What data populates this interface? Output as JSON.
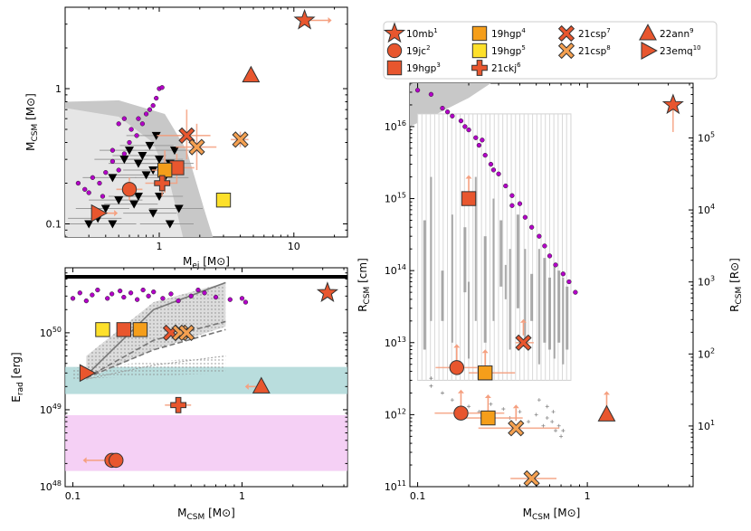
{
  "chart_data": [
    {
      "type": "scatter",
      "panel": "top-left",
      "xlabel": "M_ej [M_⊙]",
      "ylabel": "M_CSM [M_⊙]",
      "xscale": "log",
      "yscale": "log",
      "xlim": [
        0.2,
        25
      ],
      "ylim": [
        0.08,
        4.0
      ],
      "xticks": [
        {
          "v": 1,
          "label": "1"
        },
        {
          "v": 10,
          "label": "10"
        }
      ],
      "yticks": [
        {
          "v": 0.1,
          "label": "0.1"
        },
        {
          "v": 1,
          "label": "1"
        }
      ],
      "objects": [
        {
          "name": "10mb",
          "marker": "star",
          "x": 12,
          "y": 3.2
        },
        {
          "name": "19jc",
          "marker": "circle",
          "x": 0.6,
          "y": 0.18
        },
        {
          "name": "19hgp_a",
          "marker": "square",
          "x": 1.35,
          "y": 0.26
        },
        {
          "name": "19hgp_b",
          "marker": "square",
          "x": 1.1,
          "y": 0.25
        },
        {
          "name": "19hgp_c",
          "marker": "square",
          "x": 3.0,
          "y": 0.15
        },
        {
          "name": "21csp_a",
          "marker": "x",
          "x": 1.6,
          "y": 0.45
        },
        {
          "name": "21csp_b",
          "marker": "x",
          "x": 1.9,
          "y": 0.37
        },
        {
          "name": "21csp_c",
          "marker": "x",
          "x": 4.0,
          "y": 0.42
        },
        {
          "name": "22ann",
          "marker": "triangle",
          "x": 4.8,
          "y": 1.25
        },
        {
          "name": "23emq",
          "marker": "triangle-right",
          "x": 0.35,
          "y": 0.12
        },
        {
          "name": "21ckj",
          "marker": "plus",
          "x": 1.05,
          "y": 0.2
        }
      ],
      "upper_limits": [
        [
          0.45,
          0.22
        ],
        [
          0.55,
          0.3
        ],
        [
          0.6,
          0.35
        ],
        [
          0.7,
          0.28
        ],
        [
          0.75,
          0.32
        ],
        [
          0.8,
          0.23
        ],
        [
          0.85,
          0.38
        ],
        [
          0.9,
          0.25
        ],
        [
          0.95,
          0.45
        ],
        [
          1.0,
          0.3
        ],
        [
          1.1,
          0.22
        ],
        [
          1.2,
          0.28
        ],
        [
          1.3,
          0.35
        ],
        [
          0.5,
          0.15
        ],
        [
          0.65,
          0.14
        ],
        [
          0.4,
          0.13
        ],
        [
          0.35,
          0.11
        ],
        [
          0.9,
          0.12
        ],
        [
          1.2,
          0.1
        ],
        [
          1.4,
          0.13
        ],
        [
          0.3,
          0.1
        ],
        [
          0.45,
          0.1
        ],
        [
          0.7,
          0.16
        ],
        [
          1.0,
          0.16
        ]
      ],
      "dots": [
        [
          0.25,
          0.2
        ],
        [
          0.3,
          0.17
        ],
        [
          0.32,
          0.22
        ],
        [
          0.36,
          0.2
        ],
        [
          0.4,
          0.24
        ],
        [
          0.45,
          0.29
        ],
        [
          0.5,
          0.25
        ],
        [
          0.55,
          0.33
        ],
        [
          0.6,
          0.4
        ],
        [
          0.62,
          0.5
        ],
        [
          0.68,
          0.45
        ],
        [
          0.75,
          0.55
        ],
        [
          0.8,
          0.65
        ],
        [
          0.85,
          0.7
        ],
        [
          0.9,
          0.75
        ],
        [
          0.95,
          0.85
        ],
        [
          1.0,
          1.0
        ],
        [
          1.05,
          1.02
        ],
        [
          0.7,
          0.6
        ],
        [
          0.55,
          0.6
        ],
        [
          0.28,
          0.18
        ],
        [
          0.38,
          0.16
        ],
        [
          0.45,
          0.35
        ],
        [
          0.5,
          0.55
        ]
      ]
    },
    {
      "type": "scatter",
      "panel": "bottom-left",
      "xlabel": "M_CSM [M_⊙]",
      "ylabel": "E_rad [erg]",
      "xscale": "log",
      "yscale": "log",
      "xlim": [
        0.09,
        4.2
      ],
      "ylim": [
        1e+48,
        7e+50
      ],
      "xticks": [
        {
          "v": 0.1,
          "label": "0.1"
        },
        {
          "v": 1,
          "label": "1"
        }
      ],
      "yticks": [
        {
          "v": 1e+48,
          "label": "10^48"
        },
        {
          "v": 1e+49,
          "label": "10^49"
        },
        {
          "v": 1e+50,
          "label": "10^50"
        }
      ],
      "objects": [
        {
          "name": "10mb",
          "marker": "star",
          "x": 3.2,
          "y": 3.3e+50
        },
        {
          "name": "19jc",
          "marker": "circle",
          "x": 0.17,
          "y": 2.2e+48
        },
        {
          "name": "19hgp_a",
          "marker": "square",
          "x": 0.2,
          "y": 1.1e+50
        },
        {
          "name": "19hgp_b",
          "marker": "square",
          "x": 0.25,
          "y": 1.1e+50
        },
        {
          "name": "19hgp_c",
          "marker": "square",
          "x": 0.15,
          "y": 1.1e+50
        },
        {
          "name": "21csp_a",
          "marker": "x",
          "x": 0.38,
          "y": 1e+50
        },
        {
          "name": "21csp_b",
          "marker": "x",
          "x": 0.43,
          "y": 1e+50
        },
        {
          "name": "21csp_c",
          "marker": "x",
          "x": 0.47,
          "y": 1e+50
        },
        {
          "name": "22ann",
          "marker": "triangle",
          "x": 1.3,
          "y": 2e+49
        },
        {
          "name": "23emq",
          "marker": "triangle-right",
          "x": 0.12,
          "y": 3e+49
        },
        {
          "name": "21ckj",
          "marker": "plus",
          "x": 0.42,
          "y": 1.15e+49
        }
      ]
    },
    {
      "type": "scatter",
      "panel": "right",
      "xlabel": "M_CSM [M_⊙]",
      "ylabel": "R_CSM [cm]",
      "ylabel_right": "R_CSM [R_⊙]",
      "xscale": "log",
      "yscale": "log",
      "xlim": [
        0.09,
        4.2
      ],
      "ylim": [
        100000000000.0,
        4e+16
      ],
      "xticks": [
        {
          "v": 0.1,
          "label": "0.1"
        },
        {
          "v": 1,
          "label": "1"
        }
      ],
      "yticks": [
        {
          "v": 100000000000.0,
          "label": "10^11"
        },
        {
          "v": 1000000000000.0,
          "label": "10^12"
        },
        {
          "v": 10000000000000.0,
          "label": "10^13"
        },
        {
          "v": 100000000000000.0,
          "label": "10^14"
        },
        {
          "v": 1000000000000000.0,
          "label": "10^15"
        },
        {
          "v": 1e+16,
          "label": "10^16"
        }
      ],
      "yticks_right": [
        {
          "v": 10,
          "label": "10^1"
        },
        {
          "v": 100,
          "label": "10^2"
        },
        {
          "v": 1000,
          "label": "10^3"
        },
        {
          "v": 10000,
          "label": "10^4"
        },
        {
          "v": 100000,
          "label": "10^5"
        }
      ],
      "objects": [
        {
          "name": "10mb",
          "marker": "star",
          "x": 3.2,
          "y": 2e+16
        },
        {
          "name": "19jc_a",
          "marker": "circle",
          "x": 0.17,
          "y": 4500000000000.0
        },
        {
          "name": "19jc_b",
          "marker": "circle",
          "x": 0.18,
          "y": 1050000000000.0
        },
        {
          "name": "19hgp_a",
          "marker": "square",
          "x": 0.2,
          "y": 1000000000000000.0
        },
        {
          "name": "19hgp_b",
          "marker": "square",
          "x": 0.25,
          "y": 3800000000000.0
        },
        {
          "name": "19hgp_c",
          "marker": "square",
          "x": 0.26,
          "y": 900000000000.0
        },
        {
          "name": "21csp_a",
          "marker": "x",
          "x": 0.42,
          "y": 10000000000000.0
        },
        {
          "name": "21csp_b",
          "marker": "x",
          "x": 0.38,
          "y": 650000000000.0
        },
        {
          "name": "21csp_c",
          "marker": "x",
          "x": 0.47,
          "y": 130000000000.0
        },
        {
          "name": "22ann",
          "marker": "triangle",
          "x": 1.3,
          "y": 1000000000000.0
        }
      ],
      "dots": [
        [
          0.1,
          3.2e+16
        ],
        [
          0.12,
          2.8e+16
        ],
        [
          0.14,
          1.8e+16
        ],
        [
          0.15,
          1.6e+16
        ],
        [
          0.16,
          1.4e+16
        ],
        [
          0.18,
          1.2e+16
        ],
        [
          0.19,
          1e+16
        ],
        [
          0.2,
          9000000000000000.0
        ],
        [
          0.22,
          7000000000000000.0
        ],
        [
          0.23,
          5500000000000000.0
        ],
        [
          0.25,
          4000000000000000.0
        ],
        [
          0.27,
          3000000000000000.0
        ],
        [
          0.3,
          2200000000000000.0
        ],
        [
          0.33,
          1500000000000000.0
        ],
        [
          0.36,
          1100000000000000.0
        ],
        [
          0.4,
          850000000000000.0
        ],
        [
          0.43,
          550000000000000.0
        ],
        [
          0.47,
          400000000000000.0
        ],
        [
          0.52,
          300000000000000.0
        ],
        [
          0.56,
          220000000000000.0
        ],
        [
          0.6,
          160000000000000.0
        ],
        [
          0.65,
          120000000000000.0
        ],
        [
          0.72,
          90000000000000.0
        ],
        [
          0.78,
          70000000000000.0
        ],
        [
          0.85,
          50000000000000.0
        ],
        [
          0.28,
          2500000000000000.0
        ],
        [
          0.24,
          6500000000000000.0
        ],
        [
          0.36,
          800000000000000.0
        ]
      ]
    }
  ],
  "legend": [
    {
      "key": "10mb",
      "label": "10mb",
      "sup": "1",
      "marker": "star",
      "color": "#e8562e"
    },
    {
      "key": "19jc",
      "label": "19jc",
      "sup": "2",
      "marker": "circle",
      "color": "#e8562e"
    },
    {
      "key": "19hgp3",
      "label": "19hgp",
      "sup": "3",
      "marker": "square",
      "color": "#e8562e"
    },
    {
      "key": "19hgp4",
      "label": "19hgp",
      "sup": "4",
      "marker": "square",
      "color": "#f59e1a"
    },
    {
      "key": "19hgp5",
      "label": "19hgp",
      "sup": "5",
      "marker": "square",
      "color": "#fde02a"
    },
    {
      "key": "21ckj",
      "label": "21ckj",
      "sup": "6",
      "marker": "plus",
      "color": "#e8562e"
    },
    {
      "key": "21csp7",
      "label": "21csp",
      "sup": "7",
      "marker": "x",
      "color": "#e8562e"
    },
    {
      "key": "21csp8",
      "label": "21csp",
      "sup": "8",
      "marker": "x",
      "color": "#f5a050"
    },
    {
      "key": "22ann",
      "label": "22ann",
      "sup": "9",
      "marker": "triangle",
      "color": "#e8562e"
    },
    {
      "key": "23emq",
      "label": "23emq",
      "sup": "10",
      "marker": "triangle-right",
      "color": "#e8562e"
    }
  ],
  "colors": {
    "orange_red": "#e8562e",
    "orange": "#f59e1a",
    "yellow": "#fde02a",
    "salmon": "#f5a080",
    "magenta_dot": "#b300c8",
    "teal_band": "#a8d4d4",
    "pink_band": "#f2c4f2",
    "grey_region": "#cfcfcf"
  }
}
